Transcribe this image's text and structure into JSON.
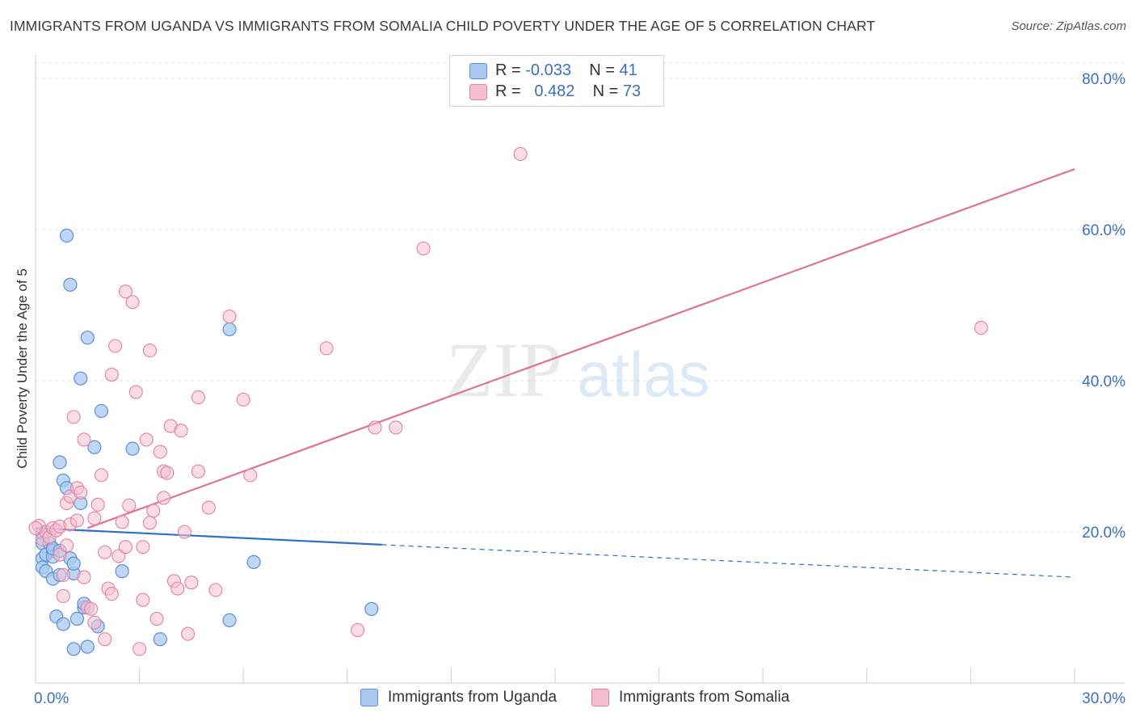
{
  "title": "IMMIGRANTS FROM UGANDA VS IMMIGRANTS FROM SOMALIA CHILD POVERTY UNDER THE AGE OF 5 CORRELATION CHART",
  "source": "Source: ZipAtlas.com",
  "watermark": {
    "zip": "ZIP",
    "atlas": "atlas"
  },
  "legend_top": [
    {
      "r_label": "R =",
      "r_value": "-0.033",
      "n_label": "N =",
      "n_value": "41"
    },
    {
      "r_label": "R =",
      "r_value": "0.482",
      "n_label": "N =",
      "n_value": "73"
    }
  ],
  "chart_data": {
    "type": "scatter",
    "title": "IMMIGRANTS FROM UGANDA VS IMMIGRANTS FROM SOMALIA CHILD POVERTY UNDER THE AGE OF 5 CORRELATION CHART",
    "xlabel": "",
    "ylabel": "Child Poverty Under the Age of 5",
    "xlim": [
      0,
      30
    ],
    "ylim": [
      0,
      82
    ],
    "x_tick_labels": [
      "0.0%",
      "30.0%"
    ],
    "y_ticks": [
      20,
      40,
      60,
      80
    ],
    "y_tick_labels": [
      "20.0%",
      "40.0%",
      "60.0%",
      "80.0%"
    ],
    "colors": {
      "uganda": "#5b8fd6",
      "uganda_fill": "#a9c8f0",
      "uganda_line": "#2f6fc8",
      "somalia": "#e57fa0",
      "somalia_fill": "#f6bfd0",
      "somalia_line": "#e07096",
      "axis_text": "#3a6fc4"
    },
    "series": [
      {
        "name": "Immigrants from Uganda",
        "r": -0.033,
        "n": 41,
        "trend": {
          "x": [
            0,
            10.0
          ],
          "y": [
            20.5,
            18.3
          ],
          "dashed_to": [
            30,
            14.0
          ]
        },
        "points": [
          [
            0.2,
            19.8
          ],
          [
            0.2,
            18.5
          ],
          [
            0.2,
            16.5
          ],
          [
            0.2,
            15.3
          ],
          [
            0.3,
            17.0
          ],
          [
            0.3,
            14.8
          ],
          [
            0.4,
            18.5
          ],
          [
            0.5,
            17.5
          ],
          [
            0.5,
            16.7
          ],
          [
            0.5,
            17.8
          ],
          [
            0.5,
            13.8
          ],
          [
            0.6,
            8.8
          ],
          [
            0.7,
            17.5
          ],
          [
            0.7,
            14.3
          ],
          [
            0.7,
            29.2
          ],
          [
            0.8,
            26.8
          ],
          [
            0.8,
            7.8
          ],
          [
            0.9,
            59.2
          ],
          [
            0.9,
            25.8
          ],
          [
            1.0,
            16.5
          ],
          [
            1.0,
            52.7
          ],
          [
            1.1,
            14.5
          ],
          [
            1.1,
            15.8
          ],
          [
            1.1,
            4.5
          ],
          [
            1.2,
            8.5
          ],
          [
            1.3,
            40.3
          ],
          [
            1.4,
            10.0
          ],
          [
            1.4,
            10.5
          ],
          [
            1.5,
            45.7
          ],
          [
            1.5,
            4.8
          ],
          [
            1.3,
            23.8
          ],
          [
            1.7,
            31.2
          ],
          [
            1.8,
            7.5
          ],
          [
            1.9,
            36.0
          ],
          [
            2.5,
            14.8
          ],
          [
            2.8,
            31.0
          ],
          [
            3.6,
            5.8
          ],
          [
            5.6,
            46.8
          ],
          [
            5.6,
            8.3
          ],
          [
            6.3,
            16.0
          ],
          [
            9.7,
            9.8
          ]
        ]
      },
      {
        "name": "Immigrants from Somalia",
        "r": 0.482,
        "n": 73,
        "trend": {
          "x": [
            1.5,
            30
          ],
          "y": [
            20.5,
            68.0
          ]
        },
        "points": [
          [
            0.1,
            20.8
          ],
          [
            0.2,
            19.0
          ],
          [
            0.3,
            20.0
          ],
          [
            0.4,
            19.3
          ],
          [
            0.5,
            20.5
          ],
          [
            0.6,
            20.2
          ],
          [
            0.7,
            17.0
          ],
          [
            0.7,
            20.7
          ],
          [
            0.8,
            14.3
          ],
          [
            0.8,
            11.5
          ],
          [
            0.9,
            23.8
          ],
          [
            0.9,
            18.2
          ],
          [
            1.0,
            21.0
          ],
          [
            1.0,
            24.7
          ],
          [
            1.1,
            35.2
          ],
          [
            1.2,
            25.8
          ],
          [
            1.2,
            21.5
          ],
          [
            1.3,
            25.2
          ],
          [
            1.4,
            32.2
          ],
          [
            1.4,
            14.0
          ],
          [
            1.5,
            10.0
          ],
          [
            1.6,
            9.8
          ],
          [
            1.7,
            21.8
          ],
          [
            1.7,
            8.0
          ],
          [
            1.8,
            23.6
          ],
          [
            1.9,
            27.5
          ],
          [
            2.0,
            17.3
          ],
          [
            2.0,
            5.8
          ],
          [
            2.1,
            12.5
          ],
          [
            2.2,
            40.8
          ],
          [
            2.2,
            11.8
          ],
          [
            2.3,
            44.6
          ],
          [
            2.4,
            16.8
          ],
          [
            2.5,
            21.3
          ],
          [
            2.6,
            18.0
          ],
          [
            2.6,
            51.8
          ],
          [
            2.7,
            23.5
          ],
          [
            2.8,
            50.4
          ],
          [
            2.9,
            38.5
          ],
          [
            3.0,
            4.5
          ],
          [
            3.1,
            11.0
          ],
          [
            3.1,
            18.0
          ],
          [
            3.2,
            32.2
          ],
          [
            3.3,
            21.2
          ],
          [
            3.3,
            44.0
          ],
          [
            3.4,
            22.8
          ],
          [
            3.5,
            8.5
          ],
          [
            3.6,
            30.6
          ],
          [
            3.7,
            24.5
          ],
          [
            3.7,
            28.0
          ],
          [
            3.8,
            27.8
          ],
          [
            3.9,
            34.0
          ],
          [
            4.0,
            13.5
          ],
          [
            4.1,
            12.5
          ],
          [
            4.2,
            33.4
          ],
          [
            4.3,
            20.0
          ],
          [
            4.4,
            6.5
          ],
          [
            4.5,
            13.3
          ],
          [
            4.7,
            28.0
          ],
          [
            4.7,
            37.8
          ],
          [
            5.0,
            23.2
          ],
          [
            5.2,
            12.3
          ],
          [
            5.6,
            48.5
          ],
          [
            6.0,
            37.5
          ],
          [
            6.2,
            27.5
          ],
          [
            8.4,
            44.3
          ],
          [
            9.3,
            7.0
          ],
          [
            9.8,
            33.8
          ],
          [
            10.4,
            33.8
          ],
          [
            11.2,
            57.5
          ],
          [
            14.0,
            70.0
          ],
          [
            27.3,
            47.0
          ],
          [
            0.0,
            20.5
          ]
        ]
      }
    ]
  },
  "bottom_legend": [
    {
      "label": "Immigrants from Uganda"
    },
    {
      "label": "Immigrants from Somalia"
    }
  ]
}
